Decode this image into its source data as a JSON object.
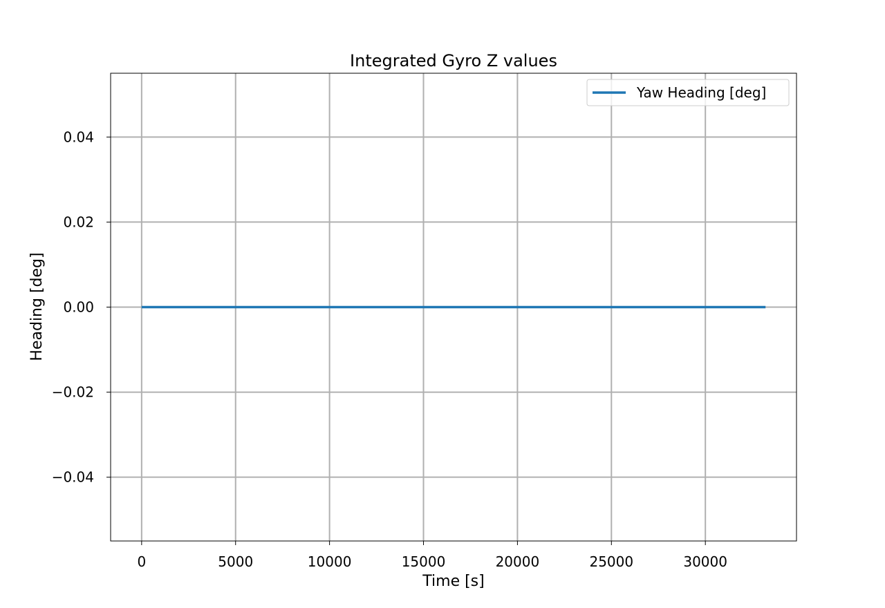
{
  "chart_data": {
    "type": "line",
    "title": "Integrated Gyro Z values",
    "xlabel": "Time [s]",
    "ylabel": "Heading [deg]",
    "xlim": [
      -1650,
      34850
    ],
    "ylim": [
      -0.055,
      0.055
    ],
    "xticks": [
      0,
      5000,
      10000,
      15000,
      20000,
      25000,
      30000
    ],
    "xtick_labels": [
      "0",
      "5000",
      "10000",
      "15000",
      "20000",
      "25000",
      "30000"
    ],
    "yticks": [
      0.04,
      0.02,
      0.0,
      -0.02,
      -0.04
    ],
    "ytick_labels": [
      "0.04",
      "0.02",
      "0.00",
      "−0.02",
      "−0.04"
    ],
    "grid": true,
    "legend_position": "top-right",
    "series": [
      {
        "name": "Yaw Heading [deg]",
        "color": "#1f77b4",
        "x": [
          0,
          33200
        ],
        "y": [
          0.0,
          0.0
        ]
      }
    ]
  }
}
